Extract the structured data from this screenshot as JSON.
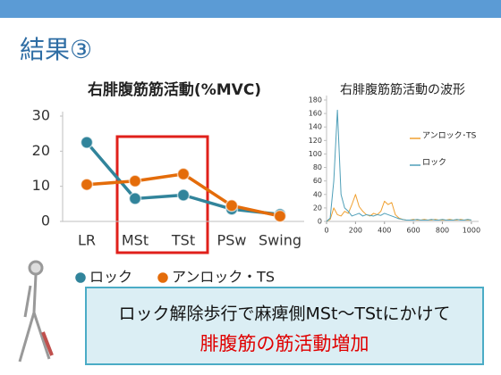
{
  "slide_title": "結果③",
  "chart_data": [
    {
      "type": "line",
      "title": "右腓腹筋筋活動(%MVC)",
      "categories": [
        "LR",
        "MSt",
        "TSt",
        "PSw",
        "Swing"
      ],
      "series": [
        {
          "name": "ロック",
          "color": "#31849b",
          "values": [
            22.5,
            6.5,
            7.5,
            3.5,
            2
          ]
        },
        {
          "name": "アンロック・TS",
          "color": "#e46c0a",
          "values": [
            10.5,
            11.5,
            13.5,
            4.5,
            1.5
          ]
        }
      ],
      "ylim": [
        0,
        30
      ],
      "yticks": [
        0,
        10,
        20,
        30
      ],
      "legend": "bottom",
      "markers": true
    },
    {
      "type": "line",
      "title": "右腓腹筋筋活動の波形",
      "x": [
        0,
        25,
        50,
        75,
        100,
        125,
        150,
        175,
        200,
        225,
        250,
        275,
        300,
        325,
        350,
        375,
        400,
        425,
        450,
        475,
        500,
        525,
        550,
        575,
        600,
        625,
        650,
        675,
        700,
        725,
        750,
        775,
        800,
        825,
        850,
        875,
        900,
        925,
        950,
        975,
        1000
      ],
      "series": [
        {
          "name": "アンロック･TS",
          "color": "#f0a030",
          "values": [
            0,
            3,
            20,
            10,
            8,
            15,
            12,
            25,
            40,
            22,
            15,
            10,
            8,
            12,
            10,
            15,
            30,
            25,
            28,
            10,
            5,
            3,
            2,
            2,
            3,
            2,
            2,
            3,
            2,
            2,
            3,
            2,
            2,
            2,
            3,
            2,
            2,
            3,
            2,
            2,
            2
          ]
        },
        {
          "name": "ロック",
          "color": "#4f9fb8",
          "values": [
            0,
            5,
            60,
            165,
            40,
            20,
            15,
            8,
            10,
            12,
            8,
            10,
            9,
            8,
            10,
            9,
            12,
            10,
            8,
            6,
            4,
            3,
            2,
            2,
            2,
            3,
            2,
            2,
            2,
            3,
            2,
            2,
            3,
            2,
            2,
            2,
            3,
            2,
            2,
            3,
            2
          ]
        }
      ],
      "xlim": [
        0,
        1050
      ],
      "xticks": [
        0,
        200,
        400,
        600,
        800,
        1000
      ],
      "ylim": [
        0,
        180
      ],
      "yticks": [
        0,
        20,
        40,
        60,
        80,
        100,
        120,
        140,
        160,
        180
      ],
      "legend": "inside",
      "markers": false
    }
  ],
  "callout": {
    "line1": "ロック解除歩行で麻痺側MSt～TStにかけて",
    "line2": "腓腹筋の筋活動増加"
  }
}
